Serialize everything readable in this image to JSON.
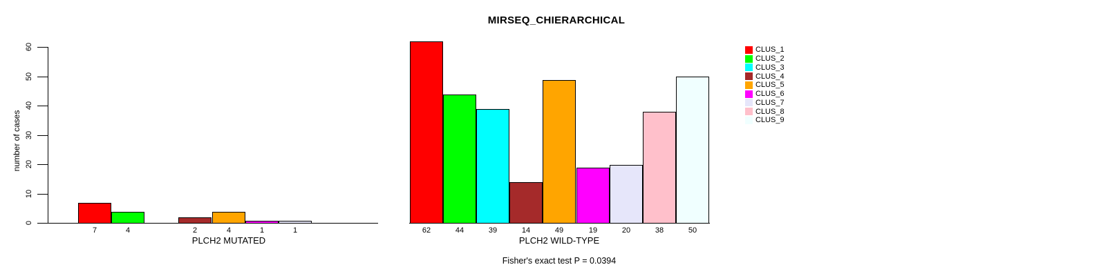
{
  "chart_data": {
    "type": "bar",
    "title": "MIRSEQ_CHIERARCHICAL",
    "ylabel": "number of cases",
    "ylim": [
      0,
      60
    ],
    "y_ticks": [
      0,
      10,
      20,
      30,
      40,
      50,
      60
    ],
    "grid": false,
    "legend_position": "top-right",
    "categories": [
      "CLUS_1",
      "CLUS_2",
      "CLUS_3",
      "CLUS_4",
      "CLUS_5",
      "CLUS_6",
      "CLUS_7",
      "CLUS_8",
      "CLUS_9"
    ],
    "colors": [
      "#FF0000",
      "#00FF00",
      "#00FFFF",
      "#A52A2A",
      "#FFA500",
      "#FF00FF",
      "#E6E6FA",
      "#FFC0CB",
      "#F0FFFF"
    ],
    "panels": [
      {
        "xlabel": "PLCH2 MUTATED",
        "values": [
          7,
          4,
          0,
          2,
          4,
          1,
          1,
          0,
          0
        ]
      },
      {
        "xlabel": "PLCH2 WILD-TYPE",
        "values": [
          62,
          44,
          39,
          14,
          49,
          19,
          20,
          38,
          50
        ]
      }
    ],
    "annotation": "Fisher's exact test P = 0.0394"
  }
}
